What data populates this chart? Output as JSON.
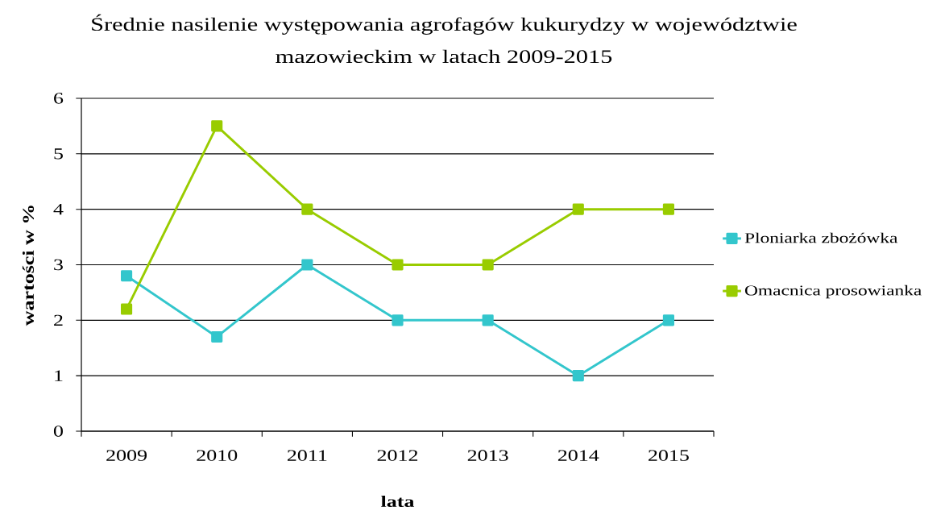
{
  "chart_data": {
    "type": "line",
    "title": "Średnie nasilenie występowania agrofagów kukurydzy w województwie mazowieckim w latach 2009-2015",
    "xlabel": "lata",
    "ylabel": "wartości w %",
    "categories": [
      "2009",
      "2010",
      "2011",
      "2012",
      "2013",
      "2014",
      "2015"
    ],
    "series": [
      {
        "name": "Ploniarka zbożówka",
        "color": "#33c6cc",
        "values": [
          2.8,
          1.7,
          3,
          2,
          2,
          1,
          2
        ]
      },
      {
        "name": "Omacnica prosowianka",
        "color": "#99cc00",
        "values": [
          2.2,
          5.5,
          4,
          3,
          3,
          4,
          4
        ]
      }
    ],
    "ylim": [
      0,
      6
    ],
    "yticks": [
      0,
      1,
      2,
      3,
      4,
      5,
      6
    ],
    "grid": "y",
    "legend": "right",
    "marker": "square",
    "line_style": "solid"
  }
}
